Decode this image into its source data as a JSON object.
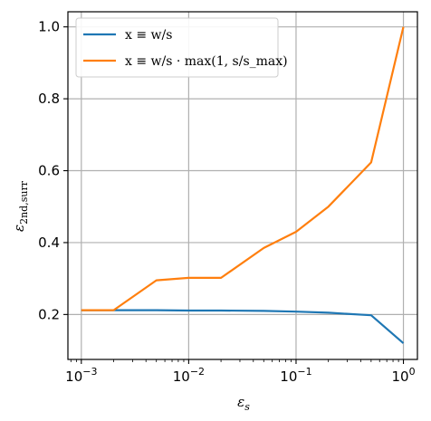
{
  "chart_data": {
    "type": "line",
    "xscale": "log",
    "xlim": [
      0.00075,
      1.35
    ],
    "ylim": [
      0.075,
      1.042
    ],
    "xlabel": "ε_s",
    "ylabel": "ε_2nd,surr",
    "grid": true,
    "legend_position": "top-left",
    "x_ticks": [
      {
        "value": 0.001,
        "base": "10",
        "exp": "−3"
      },
      {
        "value": 0.01,
        "base": "10",
        "exp": "−2"
      },
      {
        "value": 0.1,
        "base": "10",
        "exp": "−1"
      },
      {
        "value": 1,
        "base": "10",
        "exp": "0"
      }
    ],
    "y_ticks": [
      {
        "value": 0.2,
        "label": "0.2"
      },
      {
        "value": 0.4,
        "label": "0.4"
      },
      {
        "value": 0.6,
        "label": "0.6"
      },
      {
        "value": 0.8,
        "label": "0.8"
      },
      {
        "value": 1.0,
        "label": "1.0"
      }
    ],
    "series": [
      {
        "name": "x ≡ w/s",
        "color": "#1f77b4",
        "x": [
          0.001,
          0.002,
          0.005,
          0.01,
          0.02,
          0.05,
          0.1,
          0.2,
          0.5,
          1.0
        ],
        "y": [
          0.212,
          0.212,
          0.212,
          0.211,
          0.211,
          0.21,
          0.208,
          0.205,
          0.198,
          0.12
        ]
      },
      {
        "name": "x ≡ w/s · max(1, s/s_max)",
        "color": "#ff7f0e",
        "x": [
          0.001,
          0.002,
          0.005,
          0.01,
          0.02,
          0.05,
          0.1,
          0.2,
          0.5,
          1.0
        ],
        "y": [
          0.212,
          0.212,
          0.295,
          0.302,
          0.302,
          0.385,
          0.43,
          0.5,
          0.623,
          1.0
        ]
      }
    ]
  }
}
